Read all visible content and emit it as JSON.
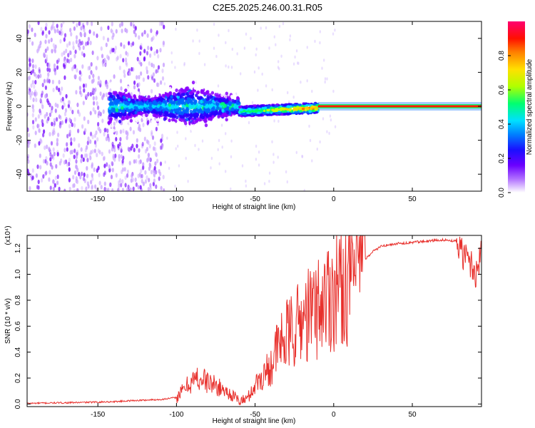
{
  "title": "C2E5.2025.246.00.31.R05",
  "chart_data": [
    {
      "type": "heatmap",
      "subtype": "spectrogram",
      "xlabel": "Height of straight line (km)",
      "ylabel": "Frequency (Hz)",
      "xlim": [
        -195,
        94
      ],
      "ylim": [
        -50,
        50
      ],
      "xticks": [
        -150,
        -100,
        -50,
        0,
        50
      ],
      "yticks": [
        -40,
        -20,
        0,
        20,
        40
      ],
      "colorbar": {
        "label": "Normalized spectral amplitude",
        "range": [
          0.0,
          1.0
        ],
        "ticks": [
          "0.0",
          "0.2",
          "0.4",
          "0.6",
          "0.8"
        ],
        "colormap": [
          "#ffffff",
          "#8a00ff",
          "#2a00ff",
          "#0066ff",
          "#00e0ff",
          "#00ff66",
          "#c8ff00",
          "#ffd000",
          "#ff6a00",
          "#ff0000",
          "#ff0066"
        ]
      },
      "regions": [
        {
          "name": "scattered noise",
          "x": [
            -195,
            -108
          ],
          "amplitude": 0.12
        },
        {
          "name": "broad band",
          "x": [
            -143,
            -60
          ],
          "freq_center": 0,
          "freq_spread": 8,
          "amplitude": 0.3
        },
        {
          "name": "narrowing band",
          "x": [
            -60,
            -10
          ],
          "freq_center": -3,
          "freq_spread": 3,
          "amplitude": 0.6
        },
        {
          "name": "steady tone",
          "x": [
            -10,
            94
          ],
          "freq_center": 0,
          "freq_spread": 1,
          "amplitude": 0.95
        }
      ]
    },
    {
      "type": "line",
      "xlabel": "Height of straight line (km)",
      "ylabel": "SNR (10 * v/v)",
      "yscale_label": "(x10⁴)",
      "xlim": [
        -195,
        94
      ],
      "ylim": [
        -0.02,
        1.3
      ],
      "xticks": [
        -150,
        -100,
        -50,
        0,
        50
      ],
      "yticks": [
        "0.0",
        "0.2",
        "0.4",
        "0.6",
        "0.8",
        "1.0",
        "1.2"
      ],
      "series": [
        {
          "name": "SNR",
          "color": "#e8302c",
          "x": [
            -195,
            -180,
            -160,
            -140,
            -130,
            -120,
            -110,
            -100,
            -95,
            -90,
            -85,
            -80,
            -75,
            -70,
            -65,
            -60,
            -55,
            -52,
            -50,
            -45,
            -40,
            -35,
            -30,
            -25,
            -20,
            -15,
            -10,
            -5,
            0,
            5,
            10,
            15,
            20,
            25,
            30,
            40,
            50,
            60,
            70,
            78,
            82,
            86,
            90,
            94
          ],
          "values": [
            0.005,
            0.008,
            0.012,
            0.018,
            0.025,
            0.03,
            0.035,
            0.05,
            0.12,
            0.18,
            0.2,
            0.17,
            0.14,
            0.11,
            0.07,
            0.02,
            0.04,
            0.1,
            0.15,
            0.22,
            0.3,
            0.45,
            0.52,
            0.58,
            0.65,
            0.7,
            0.75,
            0.82,
            0.88,
            0.93,
            1.0,
            1.05,
            1.12,
            1.18,
            1.22,
            1.24,
            1.25,
            1.26,
            1.27,
            1.26,
            1.15,
            1.12,
            1.0,
            1.18
          ]
        }
      ]
    }
  ]
}
